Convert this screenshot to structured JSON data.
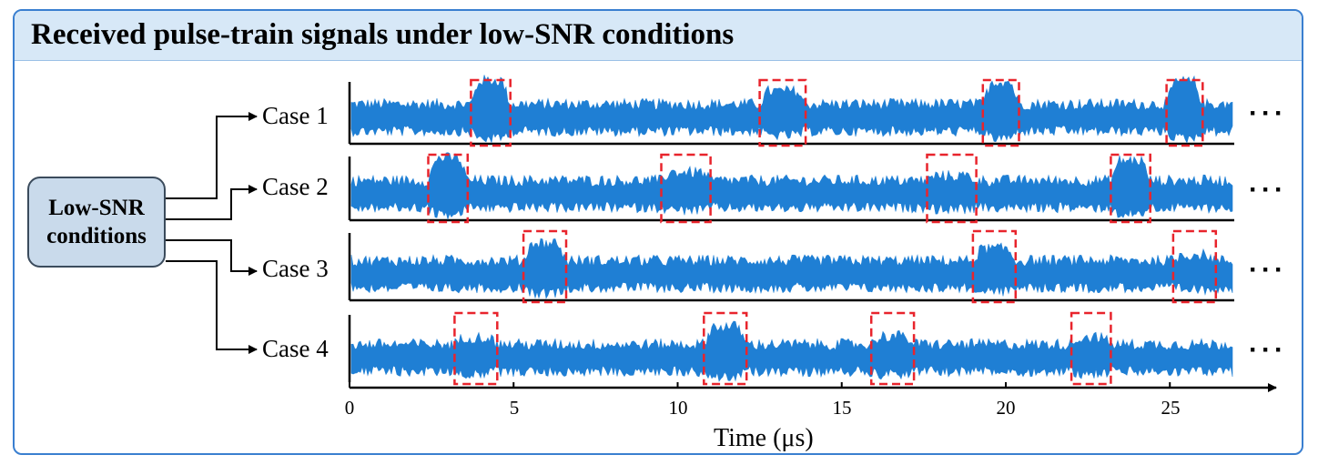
{
  "title": "Received pulse-train signals under low-SNR conditions",
  "source_box": {
    "line1": "Low-SNR",
    "line2": "conditions"
  },
  "cases": [
    {
      "label": "Case 1",
      "pulses": [
        {
          "start": 3.7,
          "end": 4.9,
          "amp": 1.0
        },
        {
          "start": 12.5,
          "end": 13.9,
          "amp": 0.55
        },
        {
          "start": 19.3,
          "end": 20.4,
          "amp": 0.95
        },
        {
          "start": 24.9,
          "end": 26.0,
          "amp": 0.95
        }
      ]
    },
    {
      "label": "Case 2",
      "pulses": [
        {
          "start": 2.4,
          "end": 3.6,
          "amp": 0.95
        },
        {
          "start": 9.5,
          "end": 11.0,
          "amp": 0.35
        },
        {
          "start": 17.6,
          "end": 19.1,
          "amp": 0.2
        },
        {
          "start": 23.2,
          "end": 24.4,
          "amp": 0.85
        }
      ]
    },
    {
      "label": "Case 3",
      "pulses": [
        {
          "start": 5.3,
          "end": 6.6,
          "amp": 0.75
        },
        {
          "start": 19.0,
          "end": 20.3,
          "amp": 0.5
        },
        {
          "start": 25.1,
          "end": 26.4,
          "amp": 0.25
        }
      ]
    },
    {
      "label": "Case 4",
      "pulses": [
        {
          "start": 3.2,
          "end": 4.5,
          "amp": 0.3
        },
        {
          "start": 10.8,
          "end": 12.1,
          "amp": 0.75
        },
        {
          "start": 15.9,
          "end": 17.2,
          "amp": 0.35
        },
        {
          "start": 22.0,
          "end": 23.2,
          "amp": 0.3
        }
      ]
    }
  ],
  "continuation": "···",
  "x_axis": {
    "label": "Time (μs)",
    "ticks": [
      "0",
      "5",
      "10",
      "15",
      "20",
      "25"
    ],
    "max": 26.9
  },
  "colors": {
    "signal": "#1f7fd4",
    "highlight": "#e8242c",
    "header": "#d7e8f7",
    "frame": "#3a7fd0",
    "box": "#c9daeb"
  }
}
